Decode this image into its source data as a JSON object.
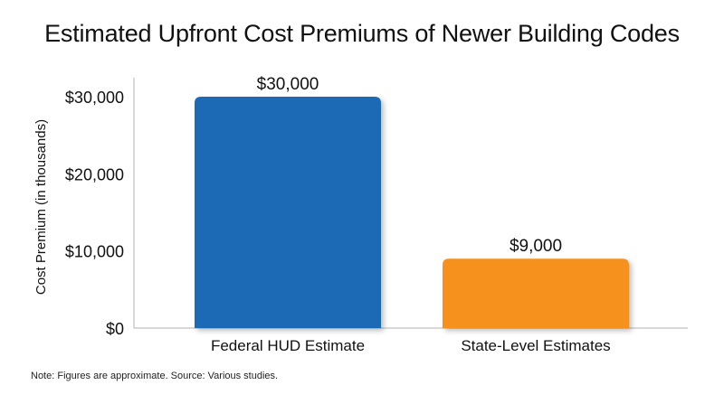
{
  "chart_data": {
    "type": "bar",
    "title": "Estimated Upfront Cost Premiums of Newer Building Codes",
    "xlabel": "",
    "ylabel": "Cost Premium (in thousands)",
    "categories": [
      "Federal HUD Estimate",
      "State-Level Estimates"
    ],
    "values": [
      30000,
      9000
    ],
    "value_labels": [
      "$30,000",
      "$9,000"
    ],
    "bar_colors": [
      "#1f6bb6",
      "#f5911e"
    ],
    "ylim": [
      0,
      30000
    ],
    "yticks": [
      0,
      10000,
      20000,
      30000
    ],
    "ytick_labels": [
      "$0",
      "$10,000",
      "$20,000",
      "$30,000"
    ],
    "grid": false,
    "legend": "none"
  },
  "footnote": "Note: Figures are approximate. Source: Various studies."
}
